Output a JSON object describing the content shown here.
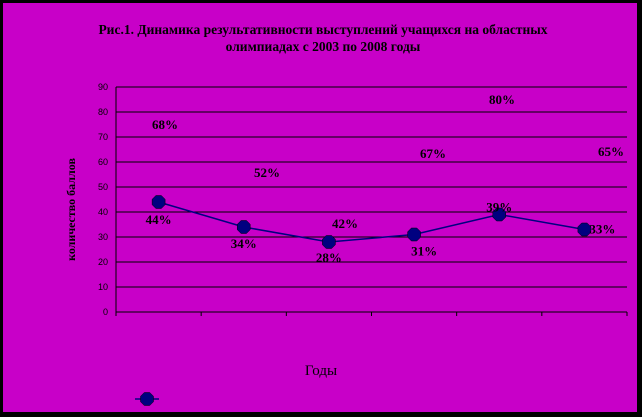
{
  "chart_data": {
    "type": "line",
    "title_line1": "Рис.1. Динамика результативности выступлений учащихся на областных",
    "title_line2": "олимпиадах с 2003 по 2008 годы",
    "xlabel": "Годы",
    "ylabel_lines": [
      "количество баллов"
    ],
    "ylim": [
      0,
      90
    ],
    "yticks": [
      0,
      10,
      20,
      30,
      40,
      50,
      60,
      70,
      80,
      90
    ],
    "grid": true,
    "categories": [
      "",
      "",
      "",
      "",
      "",
      ""
    ],
    "series": [
      {
        "name": "",
        "color": "#000080",
        "values": [
          44,
          34,
          28,
          31,
          39,
          33
        ],
        "labels": [
          "44%",
          "34%",
          "28%",
          "31%",
          "39%",
          "33%"
        ]
      }
    ],
    "annotations": [
      "68%",
      "52%",
      "42%",
      "67%",
      "80%",
      "65%"
    ],
    "legend": "bottom-left"
  }
}
